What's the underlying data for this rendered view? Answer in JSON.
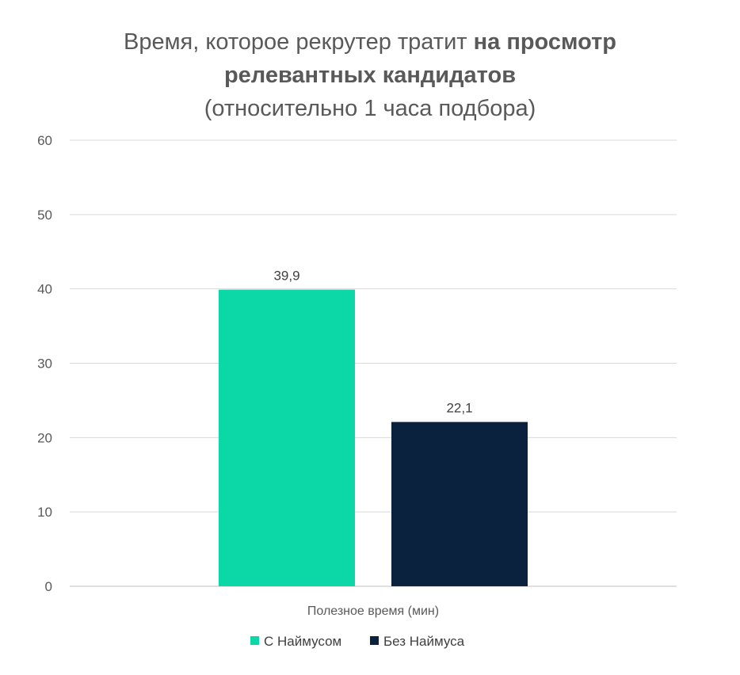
{
  "chart_data": {
    "type": "bar",
    "title_part1": "Время, которое рекрутер тратит ",
    "title_part2": "на просмотр",
    "title_line2": "релевантных кандидатов",
    "subtitle": "(относительно 1 часа подбора)",
    "categories": [
      "Полезное время (мин)"
    ],
    "series": [
      {
        "name": "С Наймусом",
        "values": [
          39.9
        ],
        "label": "39,9",
        "color": "#0bd8a6"
      },
      {
        "name": "Без Наймуса",
        "values": [
          22.1
        ],
        "label": "22,1",
        "color": "#0b223e"
      }
    ],
    "ylim": [
      0,
      60
    ],
    "yticks": [
      0,
      10,
      20,
      30,
      40,
      50,
      60
    ],
    "grid": true,
    "legend_position": "bottom"
  }
}
